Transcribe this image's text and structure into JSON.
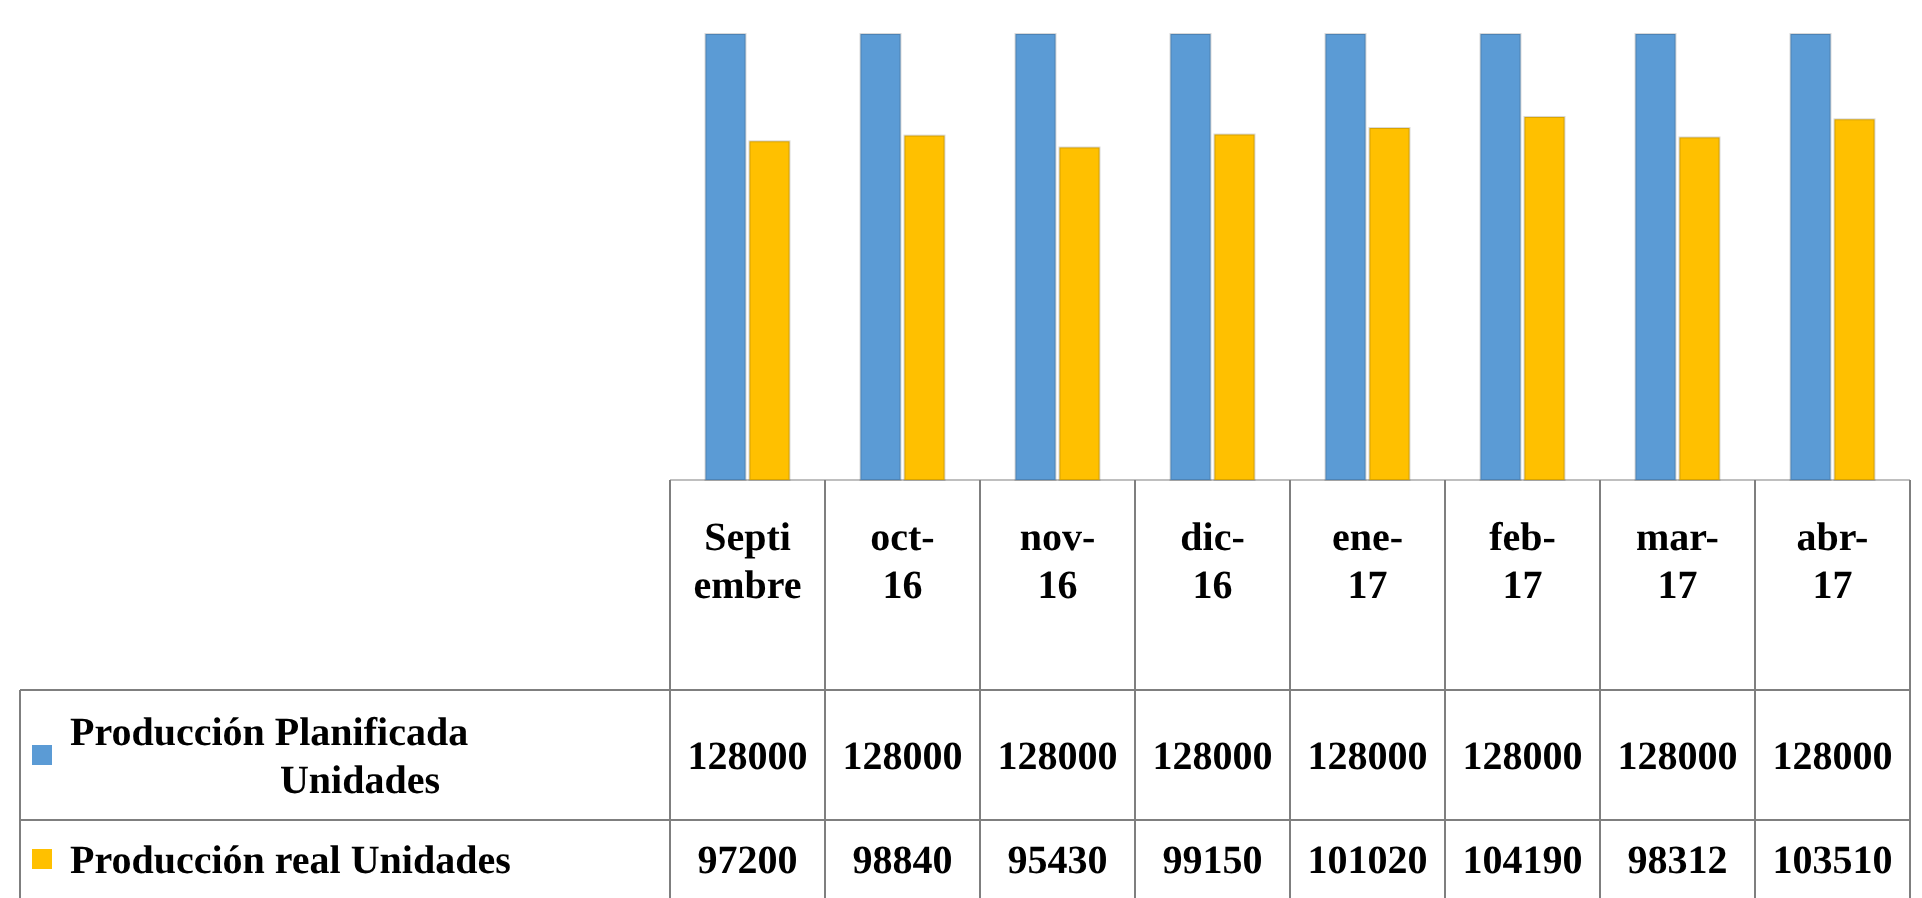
{
  "chart_data": {
    "type": "bar",
    "categories": [
      "Septiembre",
      "oct-16",
      "nov-16",
      "dic-16",
      "ene-17",
      "feb-17",
      "mar-17",
      "abr-17"
    ],
    "series": [
      {
        "name": "Producción Planificada Unidades",
        "color": "#5b9bd5",
        "values": [
          128000,
          128000,
          128000,
          128000,
          128000,
          128000,
          128000,
          128000
        ]
      },
      {
        "name": "Producción real Unidades",
        "color": "#ffc000",
        "values": [
          97200,
          98840,
          95430,
          99150,
          101020,
          104190,
          98312,
          103510
        ]
      }
    ],
    "data_labels": true,
    "legend": "bottom"
  }
}
